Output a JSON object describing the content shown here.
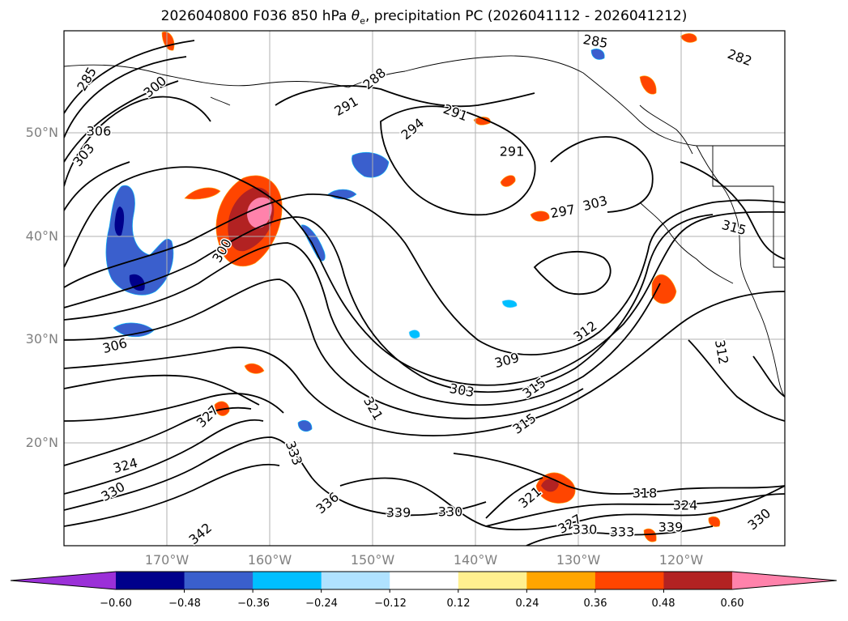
{
  "title": "2026040800 F036 850 hPa θe, precipitation PC (2026041112 - 2026041212)",
  "title_plain": "2026040800 F036 850 hPa ",
  "title_symbol": "θ",
  "title_sub": "e",
  "title_rest": ", precipitation PC (2026041112 - 2026041212)",
  "lat_labels": [
    "50°N",
    "40°N",
    "30°N",
    "20°N"
  ],
  "lon_labels": [
    "170°W",
    "160°W",
    "150°W",
    "140°W",
    "130°W",
    "120°W"
  ],
  "contour_labels": [
    "285",
    "300",
    "306",
    "303",
    "288",
    "291",
    "294",
    "291",
    "285",
    "282",
    "291",
    "297",
    "303",
    "315",
    "300",
    "306",
    "309",
    "312",
    "303",
    "315",
    "312",
    "321",
    "315",
    "327",
    "333",
    "324",
    "330",
    "336",
    "339",
    "330",
    "321",
    "318",
    "324",
    "327",
    "330",
    "333",
    "339",
    "342",
    "330"
  ],
  "colorbar": {
    "colors": [
      "#9b30d8",
      "#00008b",
      "#3a5fcd",
      "#00bfff",
      "#b0e2ff",
      "#ffffff",
      "#fff08f",
      "#ffa500",
      "#ff4500",
      "#b22222",
      "#ff82ab"
    ],
    "ticks": [
      "−0.60",
      "−0.48",
      "−0.36",
      "−0.24",
      "−0.12",
      "0.12",
      "0.24",
      "0.36",
      "0.48",
      "0.60"
    ]
  },
  "fill_colors": {
    "strong_positive": "#b22222",
    "positive": "#ff4500",
    "weak_positive": "#ffa500",
    "faint_positive": "#fff08f",
    "max_positive": "#ff82ab",
    "strong_negative": "#00008b",
    "negative": "#3a5fcd",
    "weak_negative": "#00bfff",
    "faint_negative": "#b0e2ff"
  }
}
